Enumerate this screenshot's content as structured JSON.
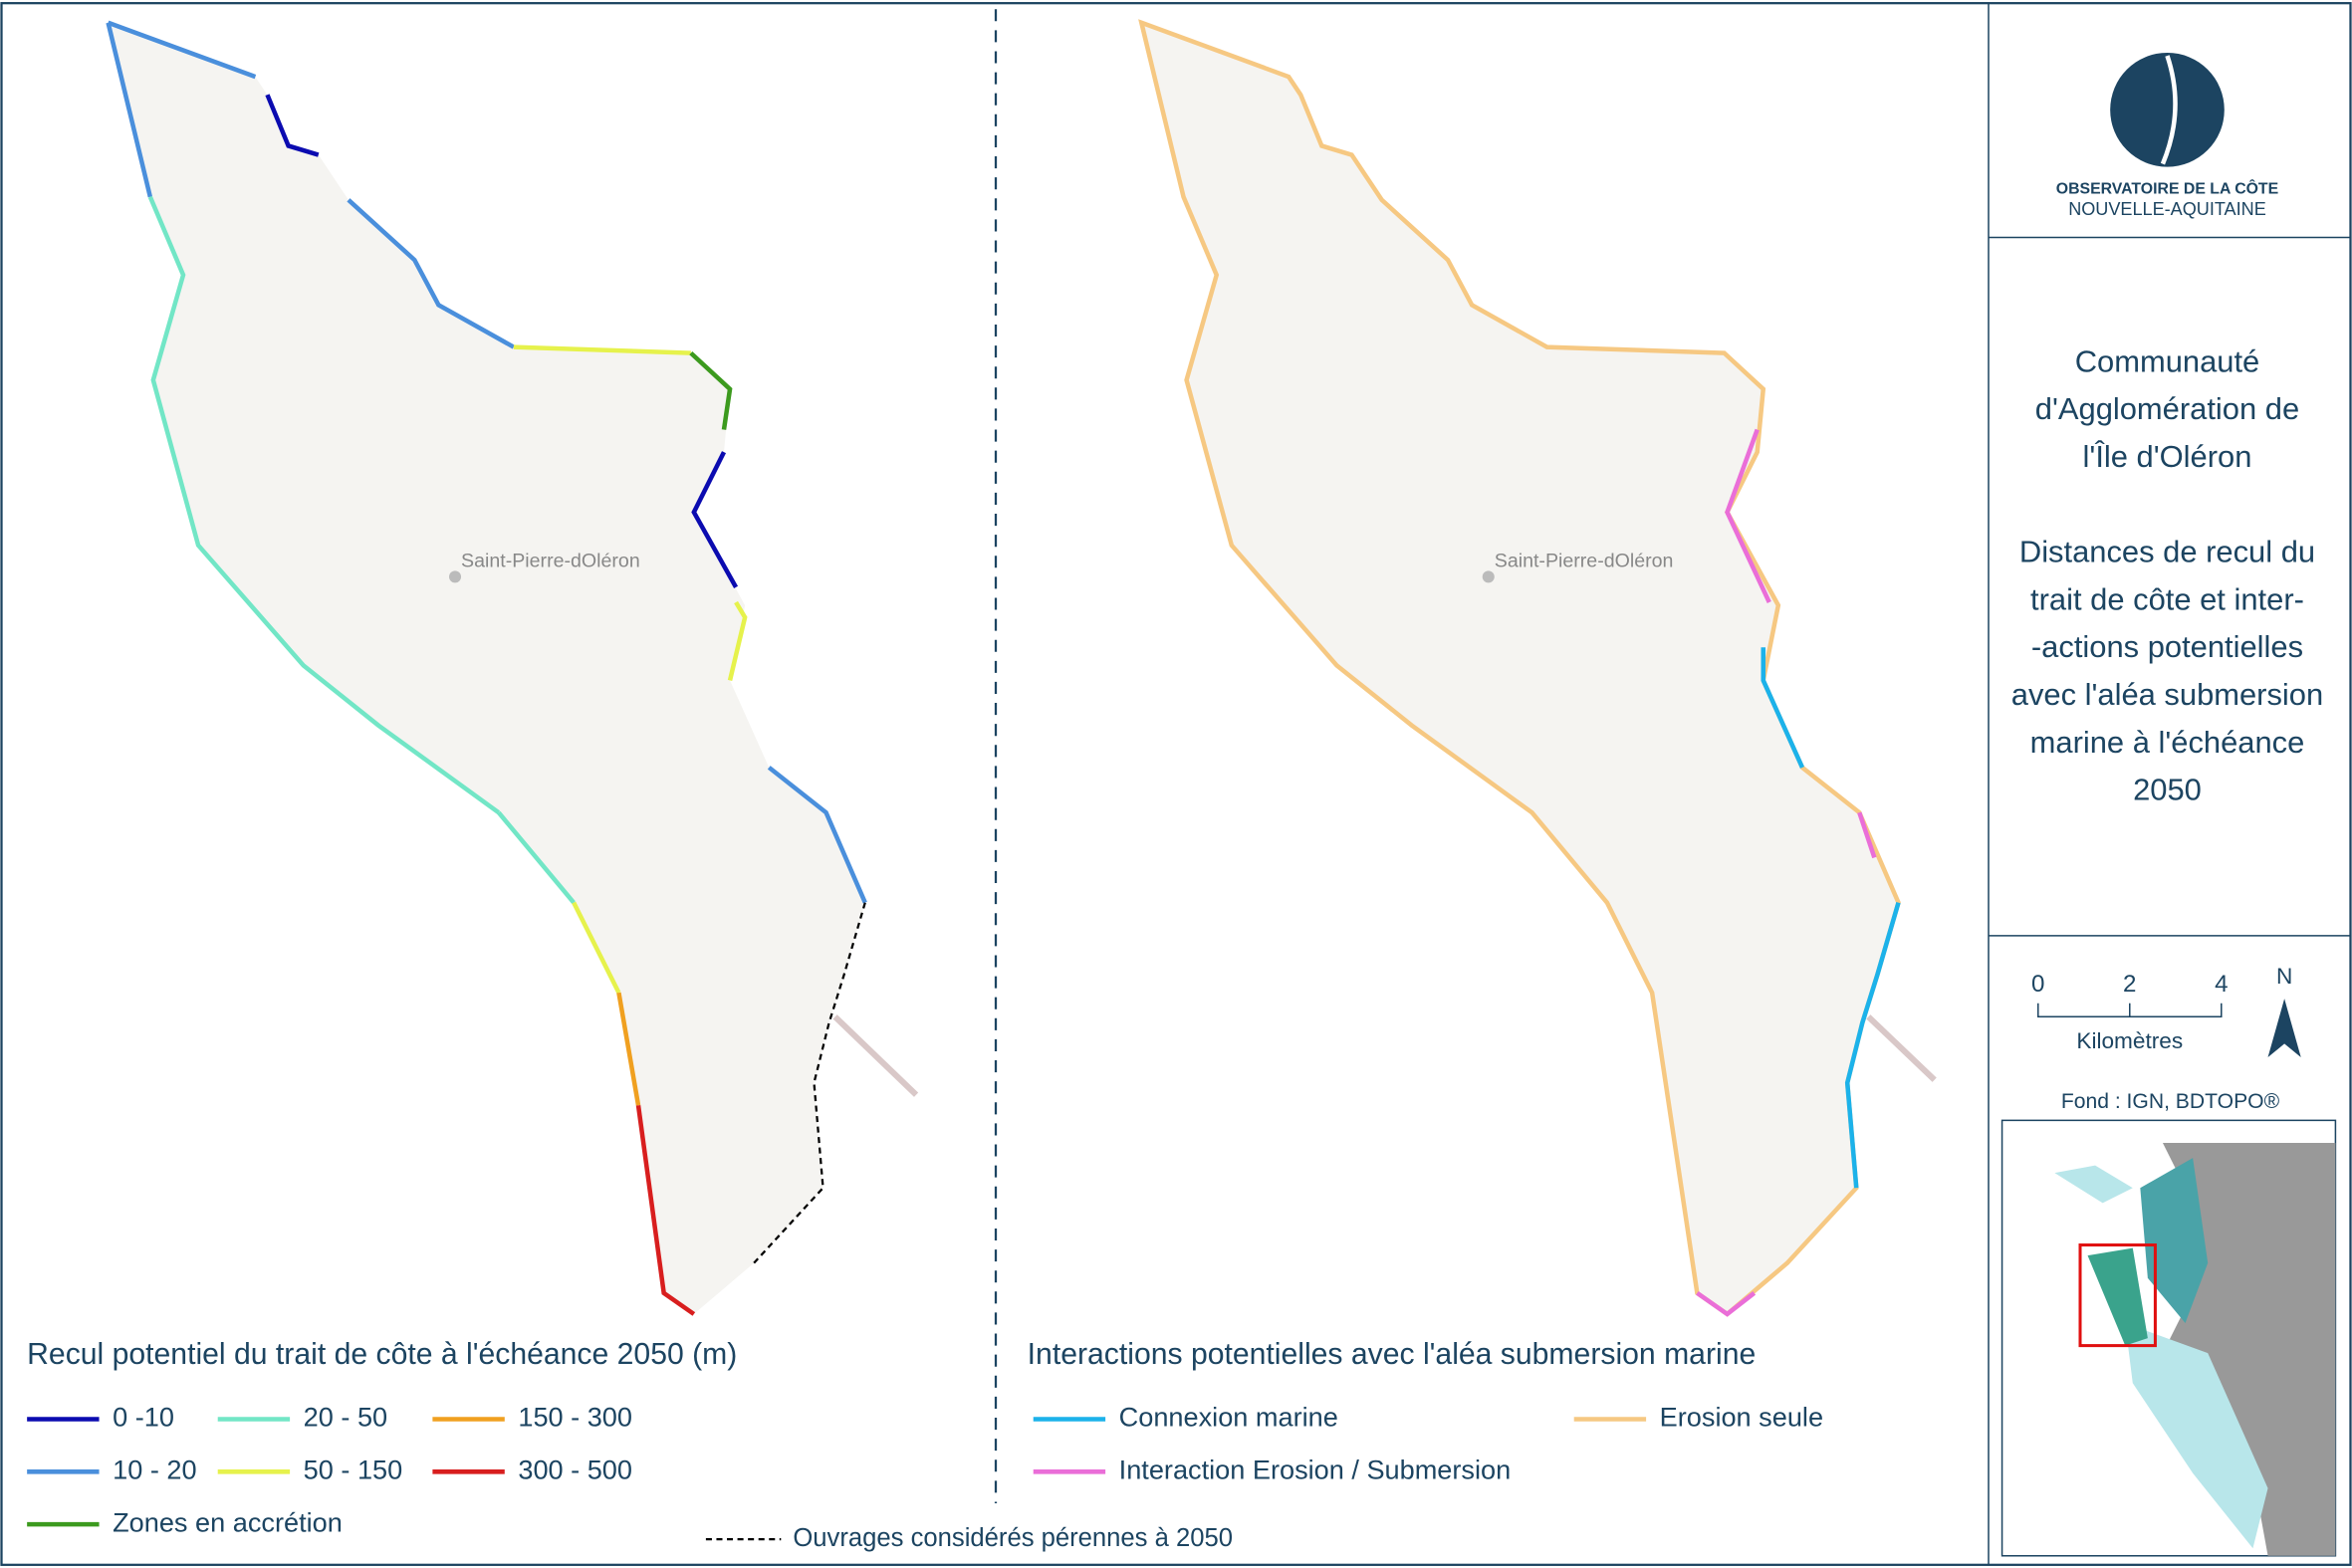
{
  "left_map": {
    "place_label": "Saint-Pierre-dOléron",
    "legend": {
      "title": "Recul potentiel du trait de côte à l'échéance 2050 (m)",
      "items": [
        {
          "label": "0 -10",
          "color": "#0b0bb0"
        },
        {
          "label": "20 - 50",
          "color": "#72e6c6"
        },
        {
          "label": "150 - 300",
          "color": "#f0a020"
        },
        {
          "label": "10 - 20",
          "color": "#4a8fdc"
        },
        {
          "label": "50 - 150",
          "color": "#e6f24c"
        },
        {
          "label": "300 - 500",
          "color": "#d81e1e"
        },
        {
          "label": "Zones en accrétion",
          "color": "#3c9a1e"
        }
      ]
    }
  },
  "right_map": {
    "place_label": "Saint-Pierre-dOléron",
    "legend": {
      "title": "Interactions potentielles avec l'aléa submersion marine",
      "items": [
        {
          "label": "Connexion marine",
          "color": "#1cb2ea"
        },
        {
          "label": "Erosion seule",
          "color": "#f6c882"
        },
        {
          "label": "Interaction Erosion / Submersion",
          "color": "#ea6ed8"
        }
      ]
    }
  },
  "structures_legend": "Ouvrages considérés pérennes à 2050",
  "logo": {
    "line1": "OBSERVATOIRE DE LA CÔTE",
    "line2": "NOUVELLE-AQUITAINE"
  },
  "panel_title": {
    "lines": [
      "Communauté",
      "d'Agglomération de",
      "l'Île d'Oléron",
      "",
      "Distances de recul du",
      "trait de côte et inter-",
      "-actions potentielles",
      "avec l'aléa submersion",
      "marine à l'échéance",
      "2050"
    ]
  },
  "scale": {
    "labels": [
      0,
      2,
      4
    ],
    "unit": "Kilomètres",
    "north": "N"
  },
  "source": "Fond : IGN, BDTOPO®"
}
